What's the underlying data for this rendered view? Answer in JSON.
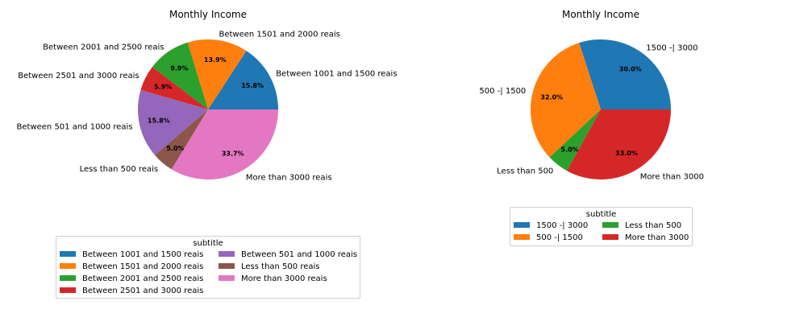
{
  "chart_data": [
    {
      "type": "pie",
      "title": "Monthly Income",
      "legend_title": "subtitle",
      "legend_placement": "below",
      "categories": [
        "Between 1001 and 1500 reais",
        "Between 1501 and 2000 reais",
        "Between 2001 and 2500 reais",
        "Between 2501 and 3000 reais",
        "Between 501 and 1000 reais",
        "Less than 500 reais",
        "More than 3000 reais"
      ],
      "values": [
        15.8,
        13.9,
        9.9,
        5.9,
        15.8,
        5.0,
        33.7
      ],
      "value_labels": [
        "15.8%",
        "13.9%",
        "9.9%",
        "5.9%",
        "15.8%",
        "5.0%",
        "33.7%"
      ],
      "colors": [
        "#1f77b4",
        "#ff7f0e",
        "#2ca02c",
        "#d62728",
        "#9467bd",
        "#8c564b",
        "#e377c2"
      ]
    },
    {
      "type": "pie",
      "title": "Monthly Income",
      "legend_title": "subtitle",
      "legend_placement": "below",
      "categories": [
        "1500 -| 3000",
        "500  -| 1500",
        "Less than 500",
        "More than 3000"
      ],
      "values": [
        30.0,
        32.0,
        5.0,
        33.0
      ],
      "value_labels": [
        "30.0%",
        "32.0%",
        "5.0%",
        "33.0%"
      ],
      "colors": [
        "#1f77b4",
        "#ff7f0e",
        "#2ca02c",
        "#d62728"
      ]
    }
  ]
}
